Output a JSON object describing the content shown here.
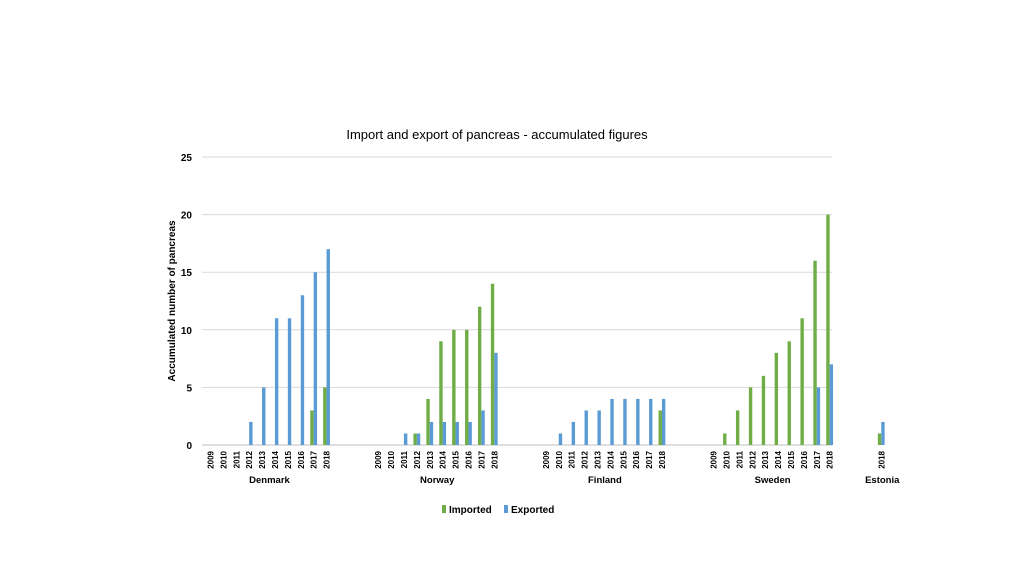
{
  "chart_data": {
    "type": "bar",
    "title": "Import and export of pancreas - accumulated figures",
    "ylabel": "Accumulated number of pancreas",
    "xlabel": "",
    "ylim": [
      0,
      25
    ],
    "yticks": [
      0,
      5,
      10,
      15,
      20,
      25
    ],
    "grid": true,
    "legend_position": "bottom",
    "colors": {
      "Imported": "#70ad47",
      "Exported": "#5b9bd5"
    },
    "groups": [
      {
        "name": "Denmark",
        "years": [
          "2009",
          "2010",
          "2011",
          "2012",
          "2013",
          "2014",
          "2015",
          "2016",
          "2017",
          "2018"
        ],
        "series": [
          {
            "name": "Imported",
            "values": [
              0,
              0,
              0,
              0,
              0,
              0,
              0,
              0,
              3,
              5
            ]
          },
          {
            "name": "Exported",
            "values": [
              0,
              0,
              0,
              2,
              5,
              11,
              11,
              13,
              15,
              17
            ]
          }
        ]
      },
      {
        "name": "Norway",
        "years": [
          "2009",
          "2010",
          "2011",
          "2012",
          "2013",
          "2014",
          "2015",
          "2016",
          "2017",
          "2018"
        ],
        "series": [
          {
            "name": "Imported",
            "values": [
              0,
              0,
              0,
              1,
              4,
              9,
              10,
              10,
              12,
              14
            ]
          },
          {
            "name": "Exported",
            "values": [
              0,
              0,
              1,
              1,
              2,
              2,
              2,
              2,
              3,
              8
            ]
          }
        ]
      },
      {
        "name": "Finland",
        "years": [
          "2009",
          "2010",
          "2011",
          "2012",
          "2013",
          "2014",
          "2015",
          "2016",
          "2017",
          "2018"
        ],
        "series": [
          {
            "name": "Imported",
            "values": [
              0,
              0,
              0,
              0,
              0,
              0,
              0,
              0,
              0,
              3
            ]
          },
          {
            "name": "Exported",
            "values": [
              0,
              1,
              2,
              3,
              3,
              4,
              4,
              4,
              4,
              4
            ]
          }
        ]
      },
      {
        "name": "Sweden",
        "years": [
          "2009",
          "2010",
          "2011",
          "2012",
          "2013",
          "2014",
          "2015",
          "2016",
          "2017",
          "2018"
        ],
        "series": [
          {
            "name": "Imported",
            "values": [
              0,
              1,
              3,
              5,
              6,
              8,
              9,
              11,
              16,
              20
            ]
          },
          {
            "name": "Exported",
            "values": [
              0,
              0,
              0,
              0,
              0,
              0,
              0,
              0,
              5,
              7
            ]
          }
        ]
      },
      {
        "name": "Estonia",
        "years": [
          "2018"
        ],
        "series": [
          {
            "name": "Imported",
            "values": [
              1
            ]
          },
          {
            "name": "Exported",
            "values": [
              2
            ]
          }
        ]
      }
    ],
    "legend": [
      "Imported",
      "Exported"
    ]
  }
}
